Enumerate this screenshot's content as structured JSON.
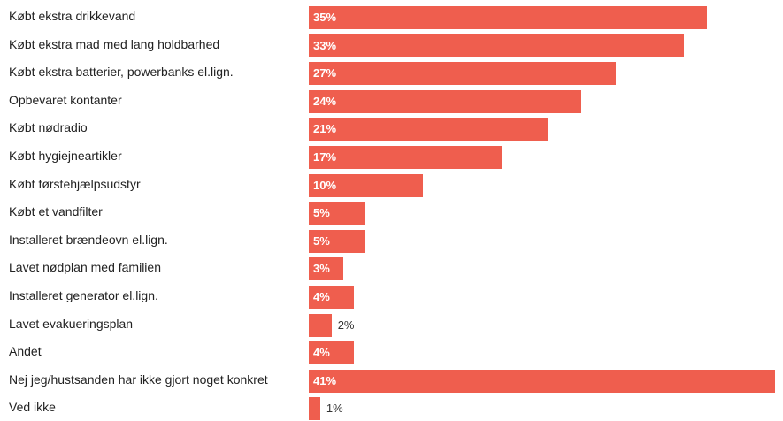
{
  "chart_data": {
    "type": "bar",
    "orientation": "horizontal",
    "title": "",
    "xlabel": "",
    "ylabel": "",
    "xlim": [
      0,
      41
    ],
    "grid": false,
    "bar_color": "#EF5E4E",
    "categories": [
      "Købt ekstra drikkevand",
      "Købt ekstra mad med lang holdbarhed",
      "Købt ekstra batterier, powerbanks el.lign.",
      "Opbevaret kontanter",
      "Købt nødradio",
      "Købt hygiejneartikler",
      "Købt førstehjælpsudstyr",
      "Købt et vandfilter",
      "Installeret brændeovn el.lign.",
      "Lavet nødplan med familien",
      "Installeret generator el.lign.",
      "Lavet evakueringsplan",
      "Andet",
      "Nej jeg/hustsanden har ikke gjort noget konkret",
      "Ved ikke"
    ],
    "values": [
      35,
      33,
      27,
      24,
      21,
      17,
      10,
      5,
      5,
      3,
      4,
      2,
      4,
      41,
      1
    ],
    "value_labels": [
      "35%",
      "33%",
      "27%",
      "24%",
      "21%",
      "17%",
      "10%",
      "5%",
      "5%",
      "3%",
      "4%",
      "2%",
      "4%",
      "41%",
      "1%"
    ]
  }
}
